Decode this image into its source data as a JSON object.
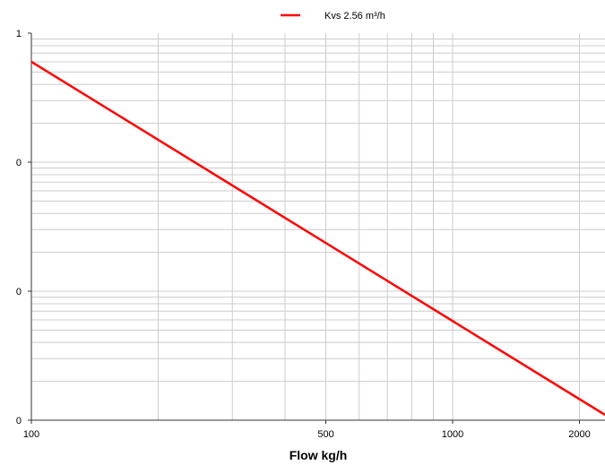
{
  "chart_data": {
    "type": "line",
    "title": "",
    "xlabel": "Flow kg/h",
    "ylabel": "",
    "x_scale": "log",
    "y_scale": "log",
    "xlim": [
      100,
      2300
    ],
    "ylim": [
      0.001,
      1
    ],
    "x_ticks": [
      {
        "value": 100,
        "label": "100"
      },
      {
        "value": 500,
        "label": "500"
      },
      {
        "value": 1000,
        "label": "1000"
      },
      {
        "value": 2000,
        "label": "2000"
      }
    ],
    "y_ticks": [
      {
        "value": 0.001,
        "label": "0"
      },
      {
        "value": 0.01,
        "label": "0"
      },
      {
        "value": 0.1,
        "label": "0"
      },
      {
        "value": 1,
        "label": "1"
      }
    ],
    "grid": true,
    "legend_position": "top-center",
    "series": [
      {
        "name": "Kvs 2.56 m³/h",
        "color": "#ff0000",
        "x": [
          100,
          2300
        ],
        "y": [
          0.6,
          0.0011
        ]
      }
    ]
  }
}
